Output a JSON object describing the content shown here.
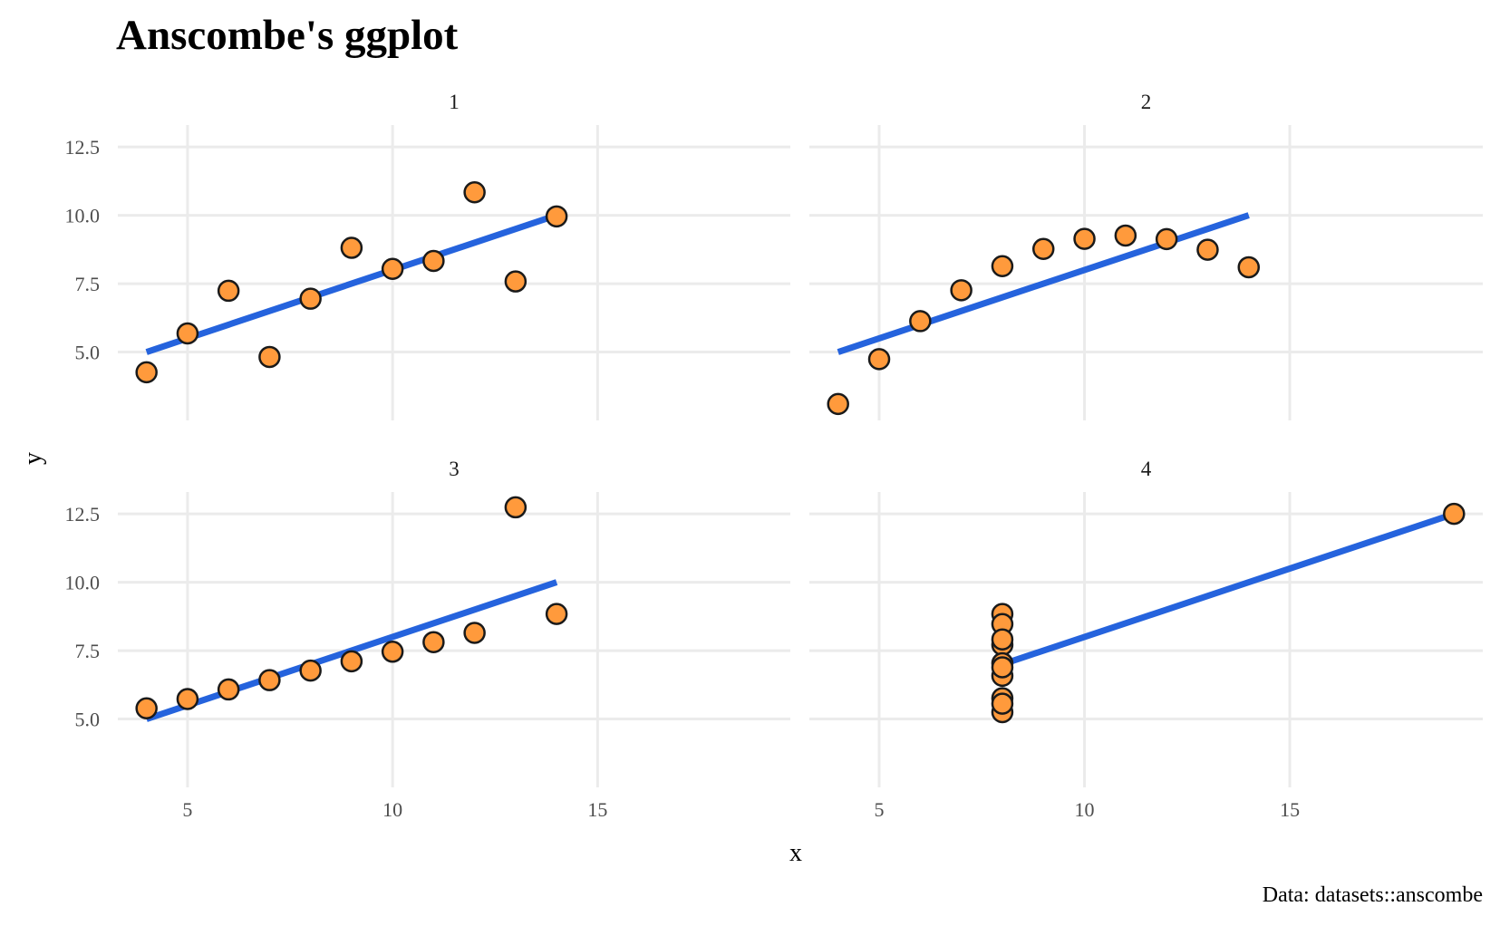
{
  "title": "Anscombe's ggplot",
  "caption": "Data: datasets::anscombe",
  "xlabel": "x",
  "ylabel": "y",
  "colors": {
    "point_fill": "#ff9a3c",
    "point_stroke": "#1a1a1a",
    "fit_line": "#2563dd",
    "grid": "#ebebeb"
  },
  "chart_data": {
    "type": "scatter",
    "facet_layout": "2x2",
    "shared_axes": true,
    "xlim": [
      3.3,
      19.7
    ],
    "ylim": [
      2.5,
      13.3
    ],
    "x_ticks": [
      5,
      10,
      15
    ],
    "x_tick_labels": [
      "5",
      "10",
      "15"
    ],
    "y_ticks": [
      5.0,
      7.5,
      10.0,
      12.5
    ],
    "y_tick_labels": [
      "5.0",
      "7.5",
      "10.0",
      "12.5"
    ],
    "grid": true,
    "legend": "none",
    "panels": [
      {
        "label": "1",
        "x": [
          10,
          8,
          13,
          9,
          11,
          14,
          6,
          4,
          12,
          7,
          5
        ],
        "y": [
          8.04,
          6.95,
          7.58,
          8.81,
          8.33,
          9.96,
          7.24,
          4.26,
          10.84,
          4.82,
          5.68
        ],
        "fit": {
          "x0": 4,
          "y0": 5.0,
          "x1": 14,
          "y1": 10.0
        }
      },
      {
        "label": "2",
        "x": [
          10,
          8,
          13,
          9,
          11,
          14,
          6,
          4,
          12,
          7,
          5
        ],
        "y": [
          9.14,
          8.14,
          8.74,
          8.77,
          9.26,
          8.1,
          6.13,
          3.1,
          9.13,
          7.26,
          4.74
        ],
        "fit": {
          "x0": 4,
          "y0": 5.0,
          "x1": 14,
          "y1": 10.0
        }
      },
      {
        "label": "3",
        "x": [
          10,
          8,
          13,
          9,
          11,
          14,
          6,
          4,
          12,
          7,
          5
        ],
        "y": [
          7.46,
          6.77,
          12.74,
          7.11,
          7.81,
          8.84,
          6.08,
          5.39,
          8.15,
          6.42,
          5.73
        ],
        "fit": {
          "x0": 4,
          "y0": 5.0,
          "x1": 14,
          "y1": 10.0
        }
      },
      {
        "label": "4",
        "x": [
          8,
          8,
          8,
          8,
          8,
          8,
          8,
          19,
          8,
          8,
          8
        ],
        "y": [
          6.58,
          5.76,
          7.71,
          8.84,
          8.47,
          7.04,
          5.25,
          12.5,
          5.56,
          7.91,
          6.89
        ],
        "fit": {
          "x0": 8,
          "y0": 7.0,
          "x1": 19,
          "y1": 12.5
        }
      }
    ]
  }
}
